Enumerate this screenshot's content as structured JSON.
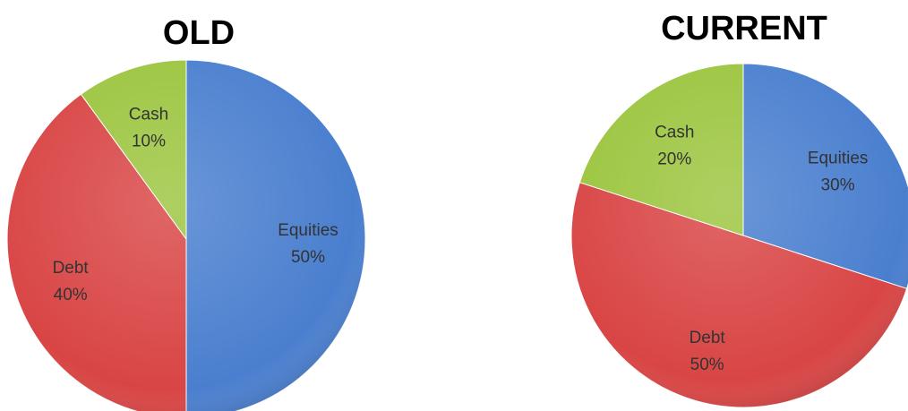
{
  "chart_data": [
    {
      "type": "pie",
      "title": "OLD",
      "categories": [
        "Equities",
        "Debt",
        "Cash"
      ],
      "values": [
        50,
        40,
        10
      ],
      "value_labels": [
        "50%",
        "40%",
        "10%"
      ],
      "colors": [
        "#4a7fcf",
        "#d94545",
        "#9cc53f"
      ]
    },
    {
      "type": "pie",
      "title": "CURRENT",
      "categories": [
        "Equities",
        "Debt",
        "Cash"
      ],
      "values": [
        30,
        50,
        20
      ],
      "value_labels": [
        "30%",
        "50%",
        "20%"
      ],
      "colors": [
        "#4a7fcf",
        "#d94545",
        "#9cc53f"
      ]
    }
  ]
}
